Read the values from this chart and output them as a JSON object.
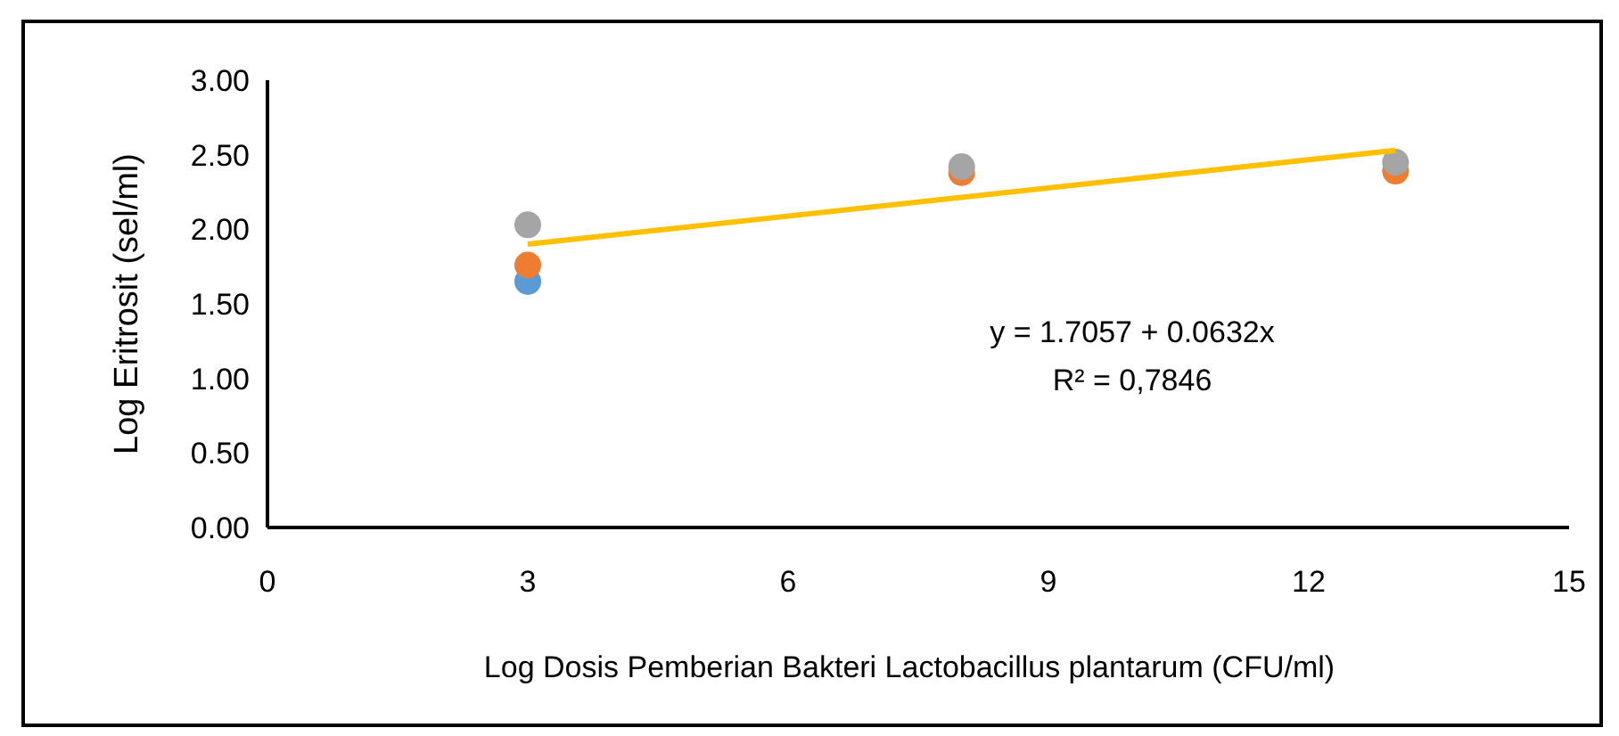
{
  "chart_data": {
    "type": "scatter",
    "xlabel": "Log Dosis Pemberian Bakteri Lactobacillus plantarum (CFU/ml)",
    "ylabel": "Log Eritrosit (sel/ml)",
    "x": [
      3,
      8,
      13
    ],
    "series": [
      {
        "color": "#5b9bd5",
        "marker": "circle",
        "values": [
          1.65,
          null,
          null
        ]
      },
      {
        "color": "#ed7d31",
        "marker": "circle",
        "values": [
          1.76,
          2.38,
          2.39
        ]
      },
      {
        "color": "#a5a5a5",
        "marker": "circle",
        "values": [
          2.03,
          2.42,
          2.45
        ]
      },
      {
        "type": "line",
        "color": "#ffc000",
        "x": [
          3,
          13
        ],
        "values": [
          1.9,
          2.53
        ]
      }
    ],
    "xlim": [
      0,
      15
    ],
    "xticks": [
      0,
      3,
      6,
      9,
      12,
      15
    ],
    "ylim": [
      0,
      3
    ],
    "yticks": [
      {
        "value": 0,
        "label": "0.00"
      },
      {
        "value": 0.5,
        "label": "0.50"
      },
      {
        "value": 1,
        "label": "1.00"
      },
      {
        "value": 1.5,
        "label": "1.50"
      },
      {
        "value": 2,
        "label": "2.00"
      },
      {
        "value": 2.5,
        "label": "2.50"
      },
      {
        "value": 3,
        "label": "3.00"
      }
    ],
    "annotations": [
      "y = 1.7057 + 0.0632x",
      "R² = 0,7846"
    ]
  }
}
